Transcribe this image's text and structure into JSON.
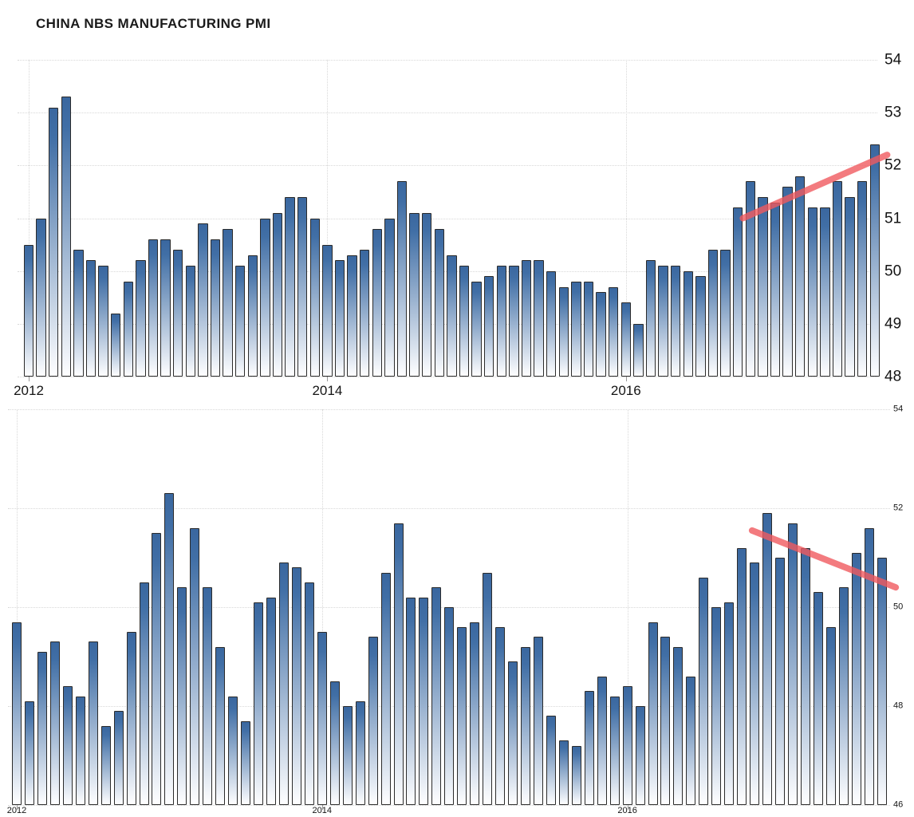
{
  "title": "CHINA NBS MANUFACTURING PMI",
  "colors": {
    "bar_top": "#3a679f",
    "bar_mid": "#416fa6",
    "bar_bottom": "#ffffff",
    "bar_border": "#2b2b2b",
    "trend_line": "#f05a5f",
    "gridline": "#d8d8d8",
    "text": "#141414"
  },
  "chart_data": [
    {
      "id": "upper",
      "type": "bar",
      "title": "CHINA NBS MANUFACTURING PMI",
      "frequency": "monthly",
      "x_tick_labels": [
        "2012",
        "2014",
        "2016"
      ],
      "x_tick_bar_index": [
        0,
        24,
        48
      ],
      "y_ticks": [
        54,
        53,
        52,
        51,
        50,
        49,
        48
      ],
      "ylim": [
        48,
        54
      ],
      "grid": true,
      "legend": false,
      "values": [
        50.5,
        51,
        53.1,
        53.3,
        50.4,
        50.2,
        50.1,
        49.2,
        49.8,
        50.2,
        50.6,
        50.6,
        50.4,
        50.1,
        50.9,
        50.6,
        50.8,
        50.1,
        50.3,
        51,
        51.1,
        51.4,
        51.4,
        51,
        50.5,
        50.2,
        50.3,
        50.4,
        50.8,
        51,
        51.7,
        51.1,
        51.1,
        50.8,
        50.3,
        50.1,
        49.8,
        49.9,
        50.1,
        50.1,
        50.2,
        50.2,
        50,
        49.7,
        49.8,
        49.8,
        49.6,
        49.7,
        49.4,
        49,
        50.2,
        50.1,
        50.1,
        50,
        49.9,
        50.4,
        50.4,
        51.2,
        51.7,
        51.4,
        51.3,
        51.6,
        51.8,
        51.2,
        51.2,
        51.7,
        51.4,
        51.7,
        52.4
      ],
      "trend_line": {
        "from_bar": 57.4,
        "from_value": 51.0,
        "to_bar": 69.0,
        "to_value": 52.2,
        "direction": "up"
      }
    },
    {
      "id": "lower",
      "type": "bar",
      "title": "",
      "frequency": "monthly",
      "x_tick_labels": [
        "2012",
        "2014",
        "2016"
      ],
      "x_tick_bar_index": [
        0,
        24,
        48
      ],
      "y_ticks": [
        54,
        52,
        50,
        48,
        46
      ],
      "ylim": [
        46,
        54
      ],
      "grid": true,
      "legend": false,
      "values": [
        49.7,
        48.1,
        49.1,
        49.3,
        48.4,
        48.2,
        49.3,
        47.6,
        47.9,
        49.5,
        50.5,
        51.5,
        52.3,
        50.4,
        51.6,
        50.4,
        49.2,
        48.2,
        47.7,
        50.1,
        50.2,
        50.9,
        50.8,
        50.5,
        49.5,
        48.5,
        48,
        48.1,
        49.4,
        50.7,
        51.7,
        50.2,
        50.2,
        50.4,
        50,
        49.6,
        49.7,
        50.7,
        49.6,
        48.9,
        49.2,
        49.4,
        47.8,
        47.3,
        47.2,
        48.3,
        48.6,
        48.2,
        48.4,
        48,
        49.7,
        49.4,
        49.2,
        48.6,
        50.6,
        50,
        50.1,
        51.2,
        50.9,
        51.9,
        51,
        51.7,
        51.2,
        50.3,
        49.6,
        50.4,
        51.1,
        51.6,
        51
      ],
      "trend_line": {
        "from_bar": 57.8,
        "from_value": 51.55,
        "to_bar": 69.1,
        "to_value": 50.4,
        "direction": "down"
      }
    }
  ]
}
